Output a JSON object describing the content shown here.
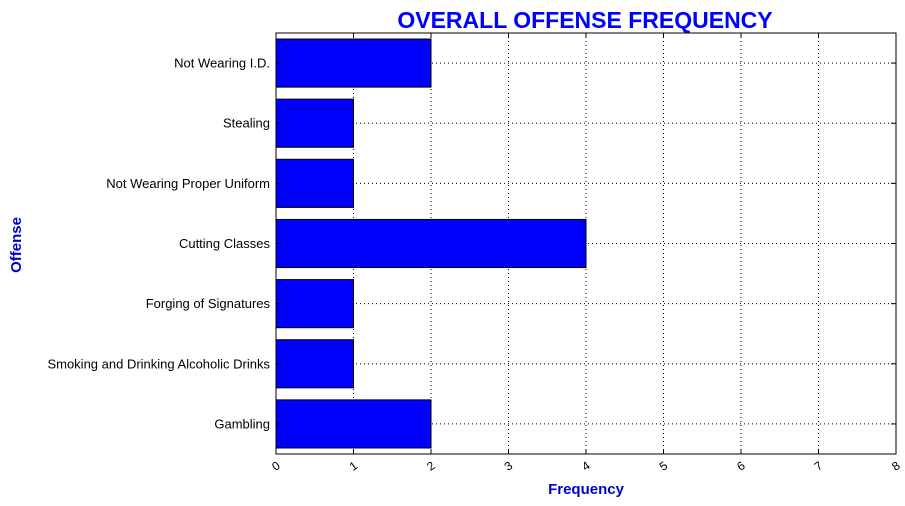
{
  "chart_data": {
    "type": "bar",
    "orientation": "horizontal",
    "title": "OVERALL OFFENSE FREQUENCY",
    "xlabel": "Frequency",
    "ylabel": "Offense",
    "categories": [
      "Not Wearing I.D.",
      "Stealing",
      "Not Wearing Proper Uniform",
      "Cutting Classes",
      "Forging of Signatures",
      "Smoking and Drinking Alcoholic Drinks",
      "Gambling"
    ],
    "values": [
      2,
      1,
      1,
      4,
      1,
      1,
      2
    ],
    "xlim": [
      0,
      8
    ],
    "xticks": [
      "0",
      "1",
      "2",
      "3",
      "4",
      "5",
      "6",
      "7",
      "8"
    ],
    "grid": true,
    "bar_color": "#0000ff",
    "title_color": "#0000ff",
    "label_color": "#0000cc"
  }
}
